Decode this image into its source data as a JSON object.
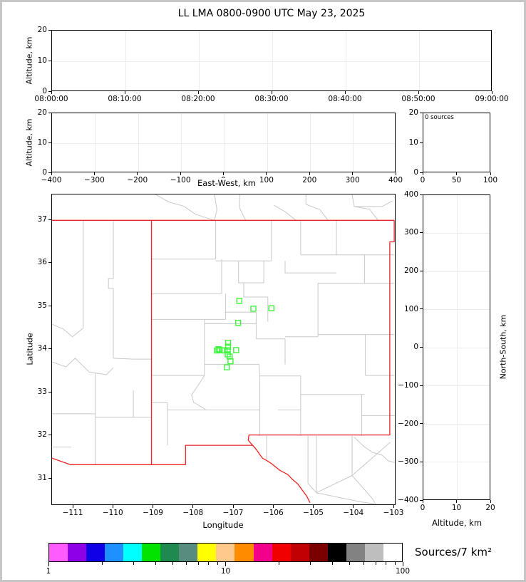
{
  "title": "LL LMA 0800-0900 UTC May 23, 2025",
  "panels": {
    "time_height": {
      "ylabel": "Altitude, km",
      "yticks": [
        "20",
        "10",
        "0"
      ],
      "xticks": [
        "08:00:00",
        "08:10:00",
        "08:20:00",
        "08:30:00",
        "08:40:00",
        "08:50:00",
        "09:00:00"
      ]
    },
    "ew_height": {
      "ylabel": "Altitude, km",
      "xlabel": "East-West, km",
      "yticks": [
        "20",
        "10",
        "0"
      ],
      "xticks": [
        "−400",
        "−300",
        "−200",
        "−100",
        "0",
        "100",
        "200",
        "300",
        "400"
      ]
    },
    "histogram": {
      "annotation": "0 sources",
      "yticks": [
        "20",
        "10",
        "0"
      ],
      "xticks": [
        "0",
        "50",
        "100"
      ]
    },
    "map": {
      "ylabel": "Latitude",
      "xlabel": "Longitude",
      "yticks": [
        "37",
        "36",
        "35",
        "34",
        "33",
        "32",
        "31"
      ],
      "xticks": [
        "−111",
        "−110",
        "−109",
        "−108",
        "−107",
        "−106",
        "−105",
        "−104",
        "−103"
      ]
    },
    "ns_height": {
      "ylabel_right": "North-South, km",
      "xlabel": "Altitude, km",
      "yticks": [
        "400",
        "300",
        "200",
        "100",
        "0",
        "−100",
        "−200",
        "−300",
        "−400"
      ],
      "xticks": [
        "0",
        "10",
        "20"
      ]
    },
    "colorbar": {
      "label": "Sources/7 km²",
      "tick_labels": [
        "1",
        "10",
        "100"
      ],
      "scale": "log",
      "range": [
        1,
        100
      ],
      "colors": [
        "#ff5cff",
        "#8e00e8",
        "#0f00e6",
        "#1e90ff",
        "#00ffff",
        "#00e400",
        "#1e8a50",
        "#588c7e",
        "#ffff00",
        "#ffc88c",
        "#ff8c00",
        "#f2008c",
        "#f00000",
        "#c00000",
        "#7a0000",
        "#000000",
        "#828282",
        "#bebebe",
        "#ffffff"
      ]
    }
  },
  "map_colors": {
    "state_border": "#ee2222",
    "county_border": "#c9c9c9",
    "station_marker": "#3df53d"
  },
  "chart_data": {
    "type": "scatter",
    "title": "LL LMA 0800-0900 UTC May 23, 2025",
    "layout": "XLMA multi-panel lightning display",
    "panels": [
      {
        "name": "altitude-vs-time",
        "ylabel": "Altitude, km",
        "ylim": [
          0,
          20
        ],
        "x_range": [
          "08:00:00",
          "09:00:00"
        ],
        "grid": true,
        "points": []
      },
      {
        "name": "altitude-vs-eastwest",
        "xlabel": "East-West, km",
        "ylabel": "Altitude, km",
        "xlim": [
          -400,
          400
        ],
        "ylim": [
          0,
          20
        ],
        "grid": true,
        "points": []
      },
      {
        "name": "source-count-histogram",
        "annotation": "0 sources",
        "xlim": [
          0,
          100
        ],
        "ylim": [
          0,
          20
        ],
        "values": []
      },
      {
        "name": "plan-view",
        "xlabel": "Longitude",
        "ylabel": "Latitude",
        "xlim": [
          -111.55,
          -102.97
        ],
        "ylim": [
          30.38,
          37.62
        ],
        "grid": false,
        "series": [
          {
            "name": "lma-stations",
            "marker": "open-square",
            "color": "#3df53d",
            "points": [
              [
                -106.86,
                35.13
              ],
              [
                -106.51,
                34.95
              ],
              [
                -106.06,
                34.96
              ],
              [
                -106.89,
                34.62
              ],
              [
                -107.14,
                34.16
              ],
              [
                -107.14,
                34.07
              ],
              [
                -107.42,
                33.98
              ],
              [
                -107.38,
                34.01
              ],
              [
                -107.35,
                33.99
              ],
              [
                -107.29,
                33.985
              ],
              [
                -107.23,
                33.98
              ],
              [
                -107.15,
                33.985
              ],
              [
                -106.94,
                33.99
              ],
              [
                -107.15,
                33.89
              ],
              [
                -107.1,
                33.84
              ],
              [
                -107.08,
                33.73
              ],
              [
                -107.17,
                33.59
              ]
            ]
          }
        ]
      },
      {
        "name": "altitude-vs-northsouth",
        "xlabel": "Altitude, km",
        "ylabel": "North-South, km",
        "xlim": [
          0,
          20
        ],
        "ylim": [
          -400,
          400
        ],
        "grid": true,
        "points": []
      }
    ],
    "colorbar": {
      "label": "Sources/7 km²",
      "scale": "log",
      "range": [
        1,
        100
      ]
    }
  }
}
